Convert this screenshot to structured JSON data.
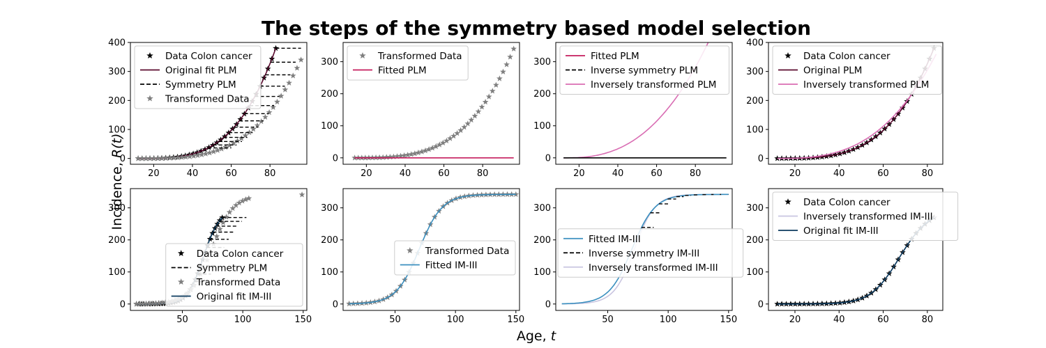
{
  "figure": {
    "suptitle": "The steps of the symmetry based model selection",
    "ylabel_main": "Incidence, ",
    "ylabel_var": "R(t)",
    "xlabel_main": "Age, ",
    "xlabel_var": "t"
  },
  "colors": {
    "data": "#000000",
    "transformed": "#7f7f7f",
    "plm_original": "#5a0a2e",
    "plm_fitted": "#c51b5c",
    "plm_inverse": "#d96db3",
    "im_original": "#0b3a5e",
    "im_fitted": "#3a8fbf",
    "im_inverse": "#c9c5e0",
    "symmetry": "#000000"
  },
  "chart_data": [
    {
      "type": "line",
      "panel": "row1-col1",
      "xlim": [
        8,
        99
      ],
      "ylim": [
        -20,
        400
      ],
      "xticks": [
        20,
        40,
        60,
        80
      ],
      "yticks": [
        0,
        100,
        200,
        300,
        400
      ],
      "legend": [
        {
          "label": "Data Colon cancer",
          "kind": "star",
          "color": "#000000"
        },
        {
          "label": "Original fit PLM",
          "kind": "line",
          "color": "#5a0a2e"
        },
        {
          "label": "Symmetry PLM",
          "kind": "dash",
          "color": "#000000"
        },
        {
          "label": "Transformed Data",
          "kind": "star",
          "color": "#7f7f7f"
        }
      ],
      "legend_loc": "upper-left",
      "series": [
        {
          "role": "data",
          "kind": "points",
          "color": "#000000",
          "x_range": [
            12,
            83
          ],
          "y_curve": "plm",
          "count": 36
        },
        {
          "role": "fit",
          "kind": "curve",
          "color": "#5a0a2e",
          "x_range": [
            12,
            83
          ],
          "y_curve": "plm"
        },
        {
          "role": "transformed",
          "kind": "points",
          "color": "#7f7f7f",
          "x_range": [
            12,
            96
          ],
          "y_curve": "plm_shift",
          "count": 42
        }
      ],
      "symmetry": {
        "from_x": [
          48,
          83
        ],
        "shift_to": [
          60,
          96
        ],
        "curve": "plm",
        "count": 14
      }
    },
    {
      "type": "line",
      "panel": "row1-col2",
      "xlim": [
        8,
        99
      ],
      "ylim": [
        -20,
        360
      ],
      "xticks": [
        20,
        40,
        60,
        80
      ],
      "yticks": [
        0,
        100,
        200,
        300
      ],
      "legend": [
        {
          "label": "Transformed Data",
          "kind": "star",
          "color": "#7f7f7f"
        },
        {
          "label": "Fitted PLM",
          "kind": "line",
          "color": "#c51b5c"
        }
      ],
      "legend_loc": "upper-left",
      "series": [
        {
          "role": "transformed",
          "kind": "points",
          "color": "#7f7f7f",
          "x_range": [
            14,
            96
          ],
          "y_curve": "plm_shift",
          "count": 46
        },
        {
          "role": "fit",
          "kind": "curve",
          "color": "#c51b5c",
          "x_range": [
            14,
            96
          ],
          "y_curve": "zero"
        }
      ]
    },
    {
      "type": "line",
      "panel": "row1-col3",
      "xlim": [
        8,
        99
      ],
      "ylim": [
        -20,
        360
      ],
      "xticks": [
        20,
        40,
        60,
        80
      ],
      "yticks": [
        0,
        100,
        200,
        300
      ],
      "legend": [
        {
          "label": "Fitted PLM",
          "kind": "line",
          "color": "#c51b5c"
        },
        {
          "label": "Inverse symmetry PLM",
          "kind": "dash",
          "color": "#000000"
        },
        {
          "label": "Inversely transformed PLM",
          "kind": "line",
          "color": "#d96db3"
        }
      ],
      "legend_loc": "upper-left",
      "series": [
        {
          "role": "inverse",
          "kind": "curve",
          "color": "#d96db3",
          "x_range": [
            12,
            96
          ],
          "y_curve": "plm_wide"
        },
        {
          "role": "fit",
          "kind": "curve",
          "color": "#000000",
          "x_range": [
            12,
            96
          ],
          "y_curve": "zero"
        }
      ]
    },
    {
      "type": "line",
      "panel": "row1-col4",
      "xlim": [
        8,
        87
      ],
      "ylim": [
        -20,
        400
      ],
      "xticks": [
        20,
        40,
        60,
        80
      ],
      "yticks": [
        0,
        100,
        200,
        300,
        400
      ],
      "legend": [
        {
          "label": "Data Colon cancer",
          "kind": "star",
          "color": "#000000"
        },
        {
          "label": "Original PLM",
          "kind": "line",
          "color": "#5a0a2e"
        },
        {
          "label": "Inversely transformed PLM",
          "kind": "line",
          "color": "#d96db3"
        }
      ],
      "legend_loc": "upper-left",
      "series": [
        {
          "role": "data",
          "kind": "points",
          "color": "#000000",
          "x_range": [
            12,
            83
          ],
          "y_curve": "plm",
          "count": 36
        },
        {
          "role": "fit",
          "kind": "curve",
          "color": "#5a0a2e",
          "x_range": [
            12,
            83
          ],
          "y_curve": "plm"
        },
        {
          "role": "inverse",
          "kind": "curve",
          "color": "#d96db3",
          "x_range": [
            12,
            84
          ],
          "y_curve": "plm_soft"
        }
      ]
    },
    {
      "type": "line",
      "panel": "row2-col1",
      "xlim": [
        7,
        153
      ],
      "ylim": [
        -20,
        360
      ],
      "xticks": [
        50,
        100,
        150
      ],
      "yticks": [
        0,
        100,
        200,
        300
      ],
      "legend": [
        {
          "label": "Data Colon cancer",
          "kind": "star",
          "color": "#000000"
        },
        {
          "label": "Symmetry PLM",
          "kind": "dash",
          "color": "#000000"
        },
        {
          "label": "Transformed Data",
          "kind": "star",
          "color": "#7f7f7f"
        },
        {
          "label": "Original fit IM-III",
          "kind": "line",
          "color": "#0b3a5e"
        }
      ],
      "legend_loc": "lower-right",
      "series": [
        {
          "role": "data",
          "kind": "points",
          "color": "#000000",
          "x_range": [
            12,
            83
          ],
          "y_curve": "im_data",
          "count": 36
        },
        {
          "role": "fit",
          "kind": "curve",
          "color": "#0b3a5e",
          "x_range": [
            12,
            83
          ],
          "y_curve": "im_data"
        },
        {
          "role": "transformed",
          "kind": "points",
          "color": "#7f7f7f",
          "x_range": [
            12,
            105
          ],
          "y_curve": "im_trans",
          "count": 36
        },
        {
          "role": "outlier",
          "kind": "points",
          "color": "#7f7f7f",
          "x_list": [
            149
          ],
          "y_list": [
            341
          ]
        }
      ],
      "symmetry": {
        "from_x": [
          60,
          83
        ],
        "shift_to": [
          70,
          103
        ],
        "curve": "im_data",
        "count": 10
      }
    },
    {
      "type": "line",
      "panel": "row2-col2",
      "xlim": [
        7,
        153
      ],
      "ylim": [
        -20,
        360
      ],
      "xticks": [
        50,
        100,
        150
      ],
      "yticks": [
        0,
        100,
        200,
        300
      ],
      "legend": [
        {
          "label": "Transformed Data",
          "kind": "star",
          "color": "#7f7f7f"
        },
        {
          "label": "Fitted IM-III",
          "kind": "line",
          "color": "#3a8fbf"
        }
      ],
      "legend_loc": "center-right",
      "series": [
        {
          "role": "transformed",
          "kind": "points",
          "color": "#7f7f7f",
          "x_range": [
            12,
            150
          ],
          "y_curve": "im_fit",
          "count": 40
        },
        {
          "role": "fit",
          "kind": "curve",
          "color": "#3a8fbf",
          "x_range": [
            12,
            150
          ],
          "y_curve": "im_fit"
        }
      ]
    },
    {
      "type": "line",
      "panel": "row2-col3",
      "xlim": [
        7,
        153
      ],
      "ylim": [
        -20,
        360
      ],
      "xticks": [
        50,
        100,
        150
      ],
      "yticks": [
        0,
        100,
        200,
        300
      ],
      "legend": [
        {
          "label": "Fitted IM-III",
          "kind": "line",
          "color": "#3a8fbf"
        },
        {
          "label": "Inverse symmetry IM-III",
          "kind": "dash",
          "color": "#000000"
        },
        {
          "label": "Inversely transformed IM-III",
          "kind": "line",
          "color": "#c9c5e0"
        }
      ],
      "legend_loc": "center-left",
      "series": [
        {
          "role": "inverse",
          "kind": "curve",
          "color": "#c9c5e0",
          "x_range": [
            12,
            150
          ],
          "y_curve": "im_inv"
        },
        {
          "role": "fit",
          "kind": "curve",
          "color": "#3a8fbf",
          "x_range": [
            12,
            150
          ],
          "y_curve": "im_fit"
        }
      ],
      "symmetry": {
        "from_x": [
          78,
          150
        ],
        "shift_to": [
          88,
          150
        ],
        "curve": "im_fit",
        "count": 11
      }
    },
    {
      "type": "line",
      "panel": "row2-col4",
      "xlim": [
        8,
        87
      ],
      "ylim": [
        -20,
        360
      ],
      "xticks": [
        20,
        40,
        60,
        80
      ],
      "yticks": [
        0,
        100,
        200,
        300
      ],
      "legend": [
        {
          "label": "Data Colon cancer",
          "kind": "star",
          "color": "#000000"
        },
        {
          "label": "Inversely transformed IM-III",
          "kind": "line",
          "color": "#c9c5e0"
        },
        {
          "label": "Original fit IM-III",
          "kind": "line",
          "color": "#0b3a5e"
        }
      ],
      "legend_loc": "upper-left",
      "series": [
        {
          "role": "data",
          "kind": "points",
          "color": "#000000",
          "x_range": [
            12,
            83
          ],
          "y_curve": "im_data",
          "count": 36
        },
        {
          "role": "inverse",
          "kind": "curve",
          "color": "#c9c5e0",
          "x_range": [
            12,
            84
          ],
          "y_curve": "im_data"
        },
        {
          "role": "fit",
          "kind": "curve",
          "color": "#0b3a5e",
          "x_range": [
            12,
            83
          ],
          "y_curve": "im_data"
        }
      ]
    }
  ]
}
